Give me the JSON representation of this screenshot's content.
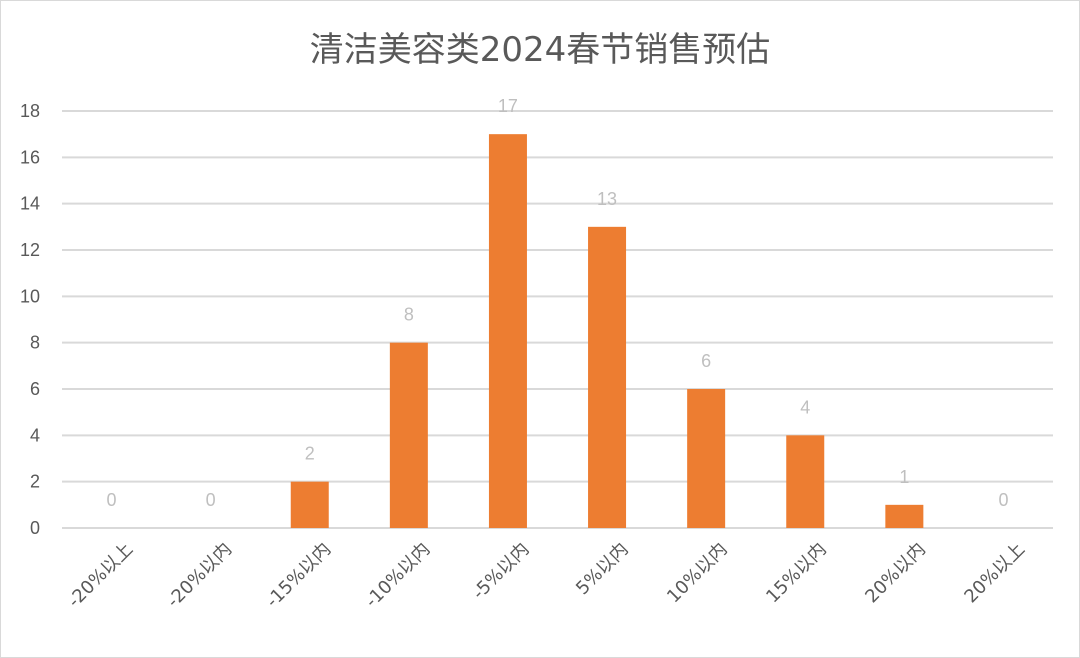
{
  "chart_data": {
    "type": "bar",
    "title": "清洁美容类2024春节销售预估",
    "categories": [
      "-20%以上",
      "-20%以内",
      "-15%以内",
      "-10%以内",
      "-5%以内",
      "5%以内",
      "10%以内",
      "15%以内",
      "20%以内",
      "20%以上"
    ],
    "values": [
      0,
      0,
      2,
      8,
      17,
      13,
      6,
      4,
      1,
      0
    ],
    "ylim": [
      0,
      18
    ],
    "yticks": [
      0,
      2,
      4,
      6,
      8,
      10,
      12,
      14,
      16,
      18
    ],
    "grid": true,
    "bar_color": "#ed7d31",
    "data_labels": true,
    "legend": "none"
  }
}
